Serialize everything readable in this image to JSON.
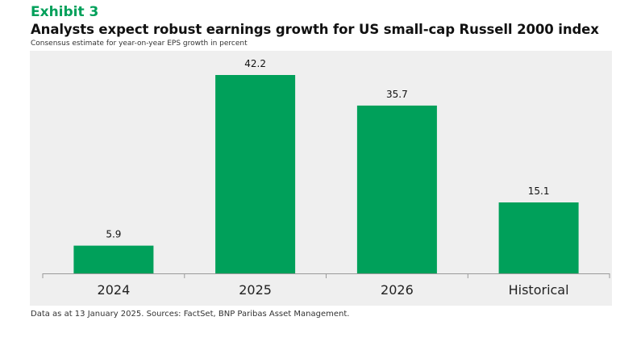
{
  "header": {
    "exhibit": "Exhibit 3",
    "title": "Analysts expect robust earnings growth for US small-cap Russell 2000 index",
    "subtitle": "Consensus estimate for year-on-year EPS growth in percent"
  },
  "footer": {
    "source": "Data as at 13 January 2025. Sources: FactSet, BNP Paribas Asset Management."
  },
  "colors": {
    "bar": "#00a05a",
    "panel": "#efefef",
    "accent": "#00a05a"
  },
  "chart_data": {
    "type": "bar",
    "title": "Analysts expect robust earnings growth for US small-cap Russell 2000 index",
    "subtitle": "Consensus estimate for year-on-year EPS growth in percent",
    "xlabel": "",
    "ylabel": "",
    "categories": [
      "2024",
      "2025",
      "2026",
      "Historical"
    ],
    "values": [
      5.9,
      42.2,
      35.7,
      15.1
    ],
    "value_labels": [
      "5.9",
      "42.2",
      "35.7",
      "15.1"
    ],
    "ylim": [
      0,
      42.2
    ],
    "grid": false,
    "legend": "none"
  }
}
